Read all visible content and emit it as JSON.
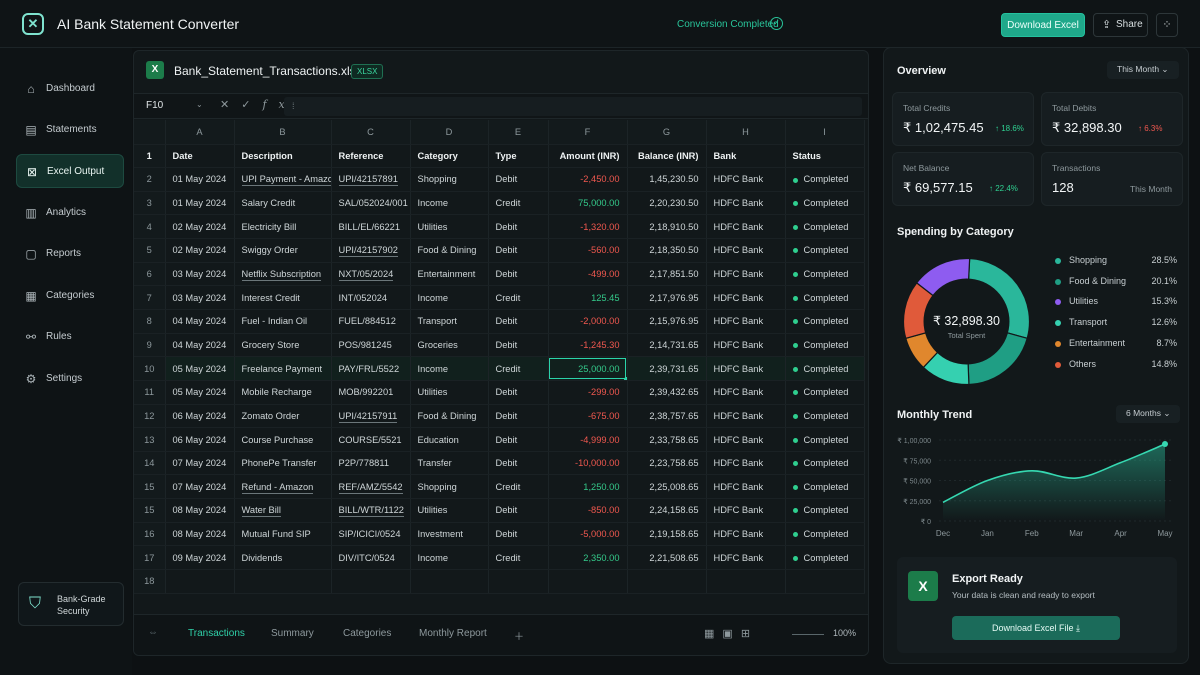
{
  "app": {
    "title": "AI Bank Statement Converter",
    "status": "Conversion Completed",
    "download_label": "Download Excel",
    "share_label": "Share"
  },
  "sidebar": {
    "items": [
      {
        "label": "Dashboard",
        "icon": "home-icon"
      },
      {
        "label": "Statements",
        "icon": "document-icon"
      },
      {
        "label": "Excel Output",
        "icon": "excel-icon"
      },
      {
        "label": "Analytics",
        "icon": "bar-chart-icon"
      },
      {
        "label": "Reports",
        "icon": "report-icon"
      },
      {
        "label": "Categories",
        "icon": "grid-icon"
      },
      {
        "label": "Rules",
        "icon": "rules-icon"
      },
      {
        "label": "Settings",
        "icon": "gear-icon"
      }
    ],
    "active_index": 2,
    "security_label": "Bank-Grade Security"
  },
  "sheet": {
    "file_name": "Bank_Statement_Transactions.xlsx",
    "badge": "XLSX",
    "cell_ref": "F10",
    "columns": [
      "A",
      "B",
      "C",
      "D",
      "E",
      "F",
      "G",
      "H",
      "I"
    ],
    "headers": [
      "Date",
      "Description",
      "Reference",
      "Category",
      "Type",
      "Amount (INR)",
      "Balance (INR)",
      "Bank",
      "Status"
    ],
    "rows": [
      {
        "n": "2",
        "date": "01 May 2024",
        "desc": "UPI Payment - Amazon",
        "ref": "UPI/42157891",
        "cat": "Shopping",
        "type": "Debit",
        "amt": "-2,450.00",
        "bal": "1,45,230.50",
        "bank": "HDFC Bank",
        "status": "Completed"
      },
      {
        "n": "3",
        "date": "01 May 2024",
        "desc": "Salary Credit",
        "ref": "SAL/052024/001",
        "cat": "Income",
        "type": "Credit",
        "amt": "75,000.00",
        "bal": "2,20,230.50",
        "bank": "HDFC Bank",
        "status": "Completed"
      },
      {
        "n": "4",
        "date": "02 May 2024",
        "desc": "Electricity Bill",
        "ref": "BILL/EL/66221",
        "cat": "Utilities",
        "type": "Debit",
        "amt": "-1,320.00",
        "bal": "2,18,910.50",
        "bank": "HDFC Bank",
        "status": "Completed"
      },
      {
        "n": "5",
        "date": "02 May 2024",
        "desc": "Swiggy Order",
        "ref": "UPI/42157902",
        "cat": "Food & Dining",
        "type": "Debit",
        "amt": "-560.00",
        "bal": "2,18,350.50",
        "bank": "HDFC Bank",
        "status": "Completed"
      },
      {
        "n": "6",
        "date": "03 May 2024",
        "desc": "Netflix Subscription",
        "ref": "NXT/05/2024",
        "cat": "Entertainment",
        "type": "Debit",
        "amt": "-499.00",
        "bal": "2,17,851.50",
        "bank": "HDFC Bank",
        "status": "Completed"
      },
      {
        "n": "7",
        "date": "03 May 2024",
        "desc": "Interest Credit",
        "ref": "INT/052024",
        "cat": "Income",
        "type": "Credit",
        "amt": "125.45",
        "bal": "2,17,976.95",
        "bank": "HDFC Bank",
        "status": "Completed"
      },
      {
        "n": "8",
        "date": "04 May 2024",
        "desc": "Fuel - Indian Oil",
        "ref": "FUEL/884512",
        "cat": "Transport",
        "type": "Debit",
        "amt": "-2,000.00",
        "bal": "2,15,976.95",
        "bank": "HDFC Bank",
        "status": "Completed"
      },
      {
        "n": "9",
        "date": "04 May 2024",
        "desc": "Grocery Store",
        "ref": "POS/981245",
        "cat": "Groceries",
        "type": "Debit",
        "amt": "-1,245.30",
        "bal": "2,14,731.65",
        "bank": "HDFC Bank",
        "status": "Completed"
      },
      {
        "n": "10",
        "date": "05 May 2024",
        "desc": "Freelance Payment",
        "ref": "PAY/FRL/5522",
        "cat": "Income",
        "type": "Credit",
        "amt": "25,000.00",
        "bal": "2,39,731.65",
        "bank": "HDFC Bank",
        "status": "Completed"
      },
      {
        "n": "11",
        "date": "05 May 2024",
        "desc": "Mobile Recharge",
        "ref": "MOB/992201",
        "cat": "Utilities",
        "type": "Debit",
        "amt": "-299.00",
        "bal": "2,39,432.65",
        "bank": "HDFC Bank",
        "status": "Completed"
      },
      {
        "n": "12",
        "date": "06 May 2024",
        "desc": "Zomato Order",
        "ref": "UPI/42157911",
        "cat": "Food & Dining",
        "type": "Debit",
        "amt": "-675.00",
        "bal": "2,38,757.65",
        "bank": "HDFC Bank",
        "status": "Completed"
      },
      {
        "n": "13",
        "date": "06 May 2024",
        "desc": "Course Purchase",
        "ref": "COURSE/5521",
        "cat": "Education",
        "type": "Debit",
        "amt": "-4,999.00",
        "bal": "2,33,758.65",
        "bank": "HDFC Bank",
        "status": "Completed"
      },
      {
        "n": "14",
        "date": "07 May 2024",
        "desc": "PhonePe Transfer",
        "ref": "P2P/778811",
        "cat": "Transfer",
        "type": "Debit",
        "amt": "-10,000.00",
        "bal": "2,23,758.65",
        "bank": "HDFC Bank",
        "status": "Completed"
      },
      {
        "n": "15",
        "date": "07 May 2024",
        "desc": "Refund - Amazon",
        "ref": "REF/AMZ/5542",
        "cat": "Shopping",
        "type": "Credit",
        "amt": "1,250.00",
        "bal": "2,25,008.65",
        "bank": "HDFC Bank",
        "status": "Completed"
      },
      {
        "n": "15",
        "date": "08 May 2024",
        "desc": "Water Bill",
        "ref": "BILL/WTR/1122",
        "cat": "Utilities",
        "type": "Debit",
        "amt": "-850.00",
        "bal": "2,24,158.65",
        "bank": "HDFC Bank",
        "status": "Completed"
      },
      {
        "n": "16",
        "date": "08 May 2024",
        "desc": "Mutual Fund SIP",
        "ref": "SIP/ICICI/0524",
        "cat": "Investment",
        "type": "Debit",
        "amt": "-5,000.00",
        "bal": "2,19,158.65",
        "bank": "HDFC Bank",
        "status": "Completed"
      },
      {
        "n": "17",
        "date": "09 May 2024",
        "desc": "Dividends",
        "ref": "DIV/ITC/0524",
        "cat": "Income",
        "type": "Credit",
        "amt": "2,350.00",
        "bal": "2,21,508.65",
        "bank": "HDFC Bank",
        "status": "Completed"
      }
    ],
    "tabs": [
      "Transactions",
      "Summary",
      "Categories",
      "Monthly Report"
    ],
    "zoom": "100%"
  },
  "overview": {
    "title": "Overview",
    "period": "This Month",
    "cards": [
      {
        "label": "Total Credits",
        "value": "₹ 1,02,475.45",
        "change": "↑ 18.6%"
      },
      {
        "label": "Total Debits",
        "value": "₹ 32,898.30",
        "change": "↑ 6.3%"
      },
      {
        "label": "Net Balance",
        "value": "₹ 69,577.15",
        "change": "↑ 22.4%"
      },
      {
        "label": "Transactions",
        "value": "128",
        "sub": "This Month"
      }
    ]
  },
  "spending": {
    "title": "Spending by Category",
    "center_value": "₹ 32,898.30",
    "center_label": "Total Spent",
    "categories": [
      {
        "name": "Shopping",
        "pct": "28.5%",
        "value": 28.5,
        "color": "#2ab79b"
      },
      {
        "name": "Food & Dining",
        "pct": "20.1%",
        "value": 20.1,
        "color": "#1f9e84"
      },
      {
        "name": "Utilities",
        "pct": "15.3%",
        "value": 15.3,
        "color": "#8e5cf0"
      },
      {
        "name": "Transport",
        "pct": "12.6%",
        "value": 12.6,
        "color": "#35d0b0"
      },
      {
        "name": "Entertainment",
        "pct": "8.7%",
        "value": 8.7,
        "color": "#e0872d"
      },
      {
        "name": "Others",
        "pct": "14.8%",
        "value": 14.8,
        "color": "#e05a3a"
      }
    ]
  },
  "trend": {
    "title": "Monthly Trend",
    "period": "6 Months",
    "y_ticks": [
      "₹ 1,00,000",
      "₹ 75,000",
      "₹ 50,000",
      "₹ 25,000",
      "₹ 0"
    ],
    "months": [
      "Dec",
      "Jan",
      "Feb",
      "Mar",
      "Apr",
      "May"
    ]
  },
  "chart_data": {
    "type": "area",
    "categories": [
      "Dec",
      "Jan",
      "Feb",
      "Mar",
      "Apr",
      "May"
    ],
    "values": [
      23000,
      50000,
      62000,
      53000,
      72000,
      95000
    ],
    "ylim": [
      0,
      100000
    ]
  },
  "export": {
    "title": "Export Ready",
    "subtitle": "Your data is clean and ready to export",
    "button": "Download Excel File"
  }
}
